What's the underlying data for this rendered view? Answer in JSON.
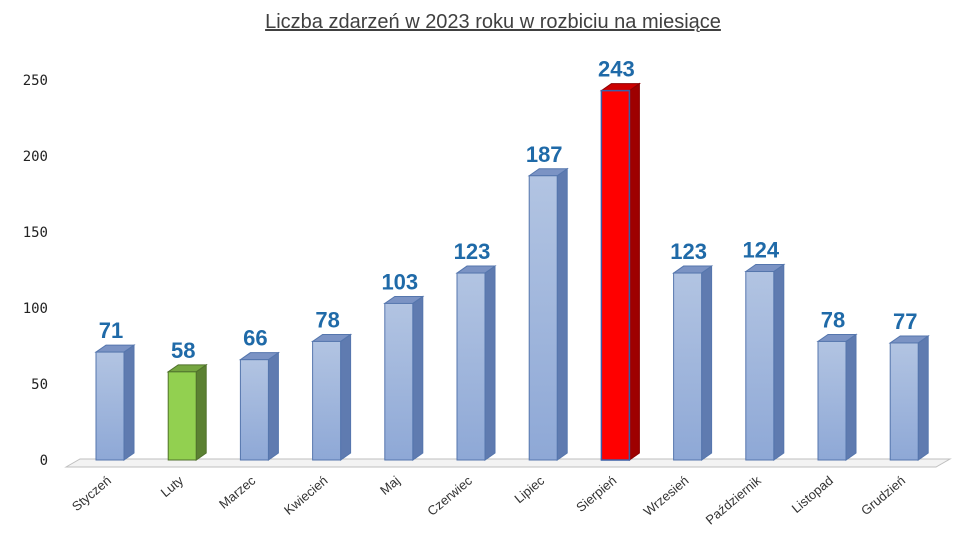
{
  "chart_data": {
    "type": "bar",
    "title": "Liczba zdarzeń w 2023 roku w rozbiciu na miesiące",
    "xlabel": "",
    "ylabel": "",
    "categories": [
      "Styczeń",
      "Luty",
      "Marzec",
      "Kwiecień",
      "Maj",
      "Czerwiec",
      "Lipiec",
      "Sierpień",
      "Wrzesień",
      "Październik",
      "Listopad",
      "Grudzień"
    ],
    "values": [
      71,
      58,
      66,
      78,
      103,
      123,
      187,
      243,
      123,
      124,
      78,
      77
    ],
    "ylim": [
      0,
      250
    ],
    "yticks": [
      "0",
      "50",
      "100",
      "150",
      "200",
      "250"
    ],
    "grid": false,
    "legend": "none",
    "colors": {
      "default": "#9fb4dc",
      "Luty": "#92d050",
      "Sierpień": "#ff0000",
      "data_label": "#1f6aa8"
    }
  }
}
